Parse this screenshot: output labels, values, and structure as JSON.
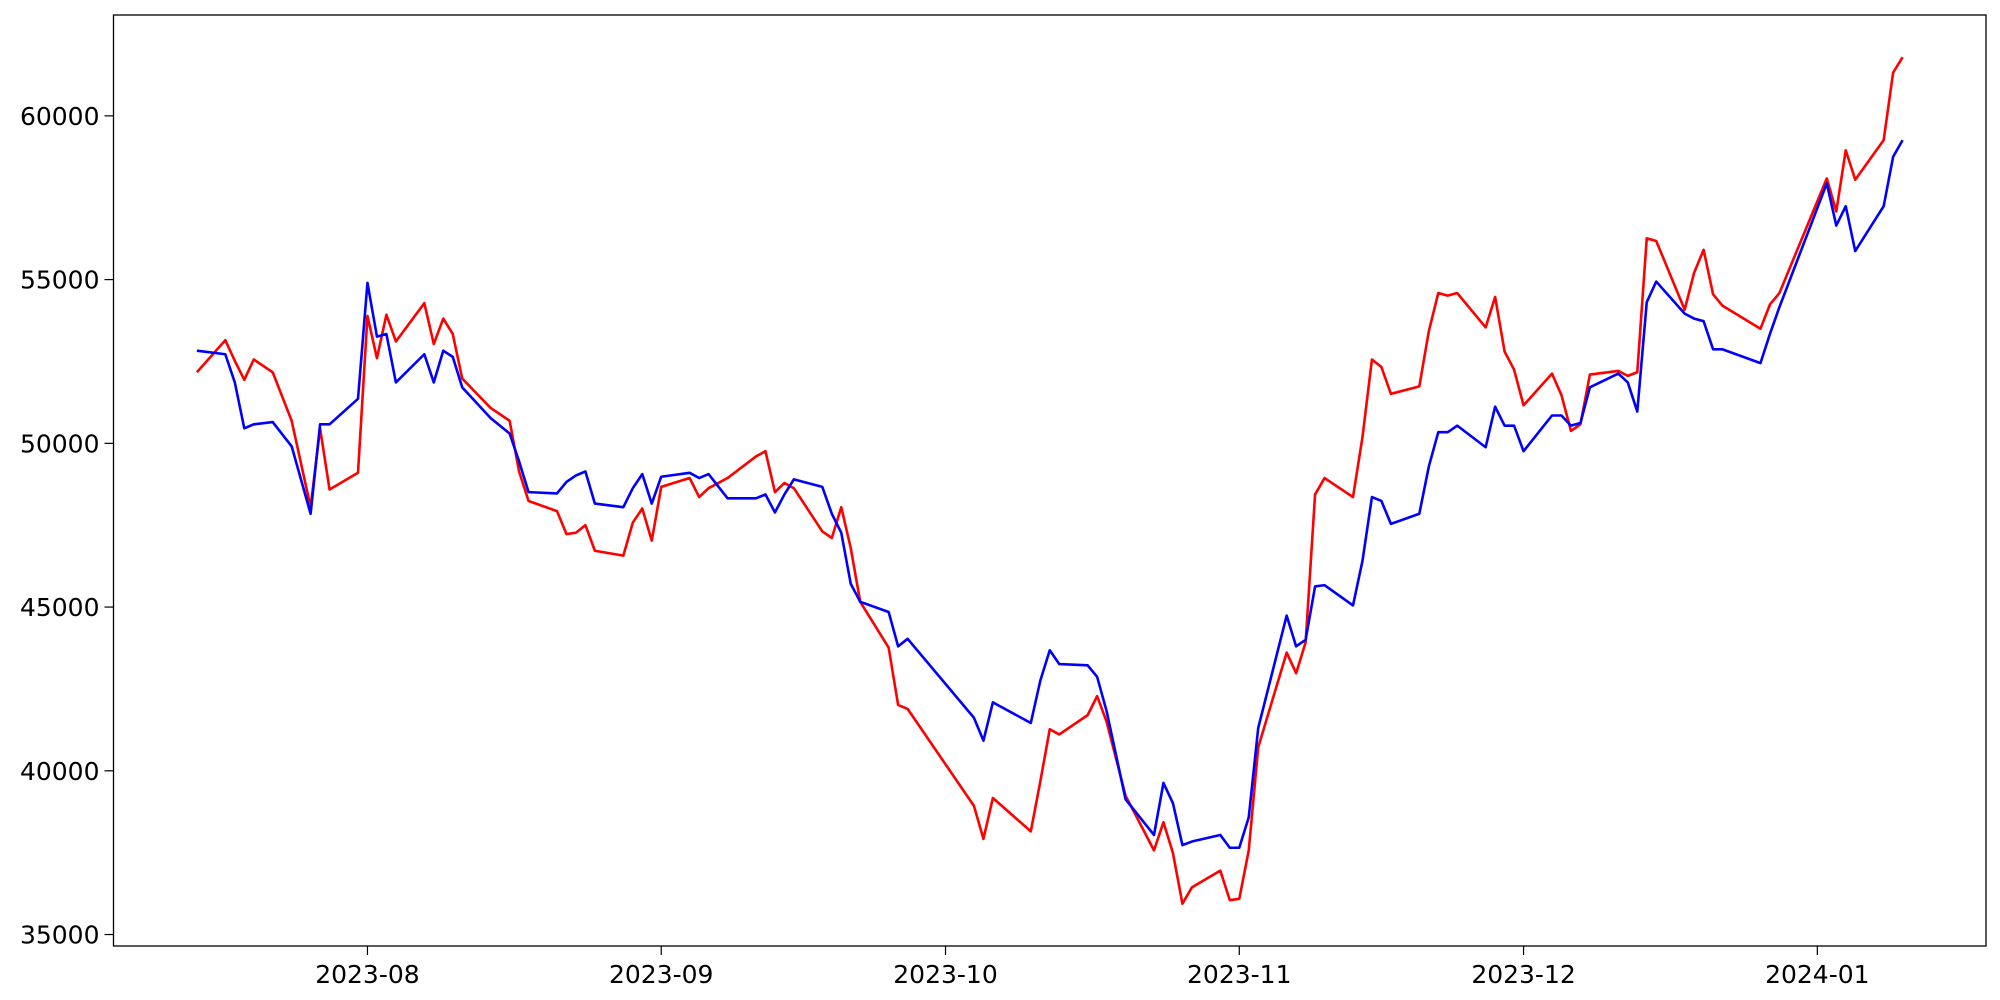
{
  "chart_data": {
    "type": "line",
    "x": [
      19552,
      19555,
      19556,
      19557,
      19558,
      19560,
      19562,
      19564,
      19565,
      19566,
      19569,
      19570,
      19571,
      19572,
      19573,
      19576,
      19577,
      19578,
      19579,
      19580,
      19583,
      19585,
      19586,
      19587,
      19590,
      19591,
      19592,
      19593,
      19594,
      19597,
      19598,
      19599,
      19600,
      19601,
      19604,
      19605,
      19606,
      19608,
      19611,
      19612,
      19613,
      19614,
      19615,
      19618,
      19619,
      19620,
      19621,
      19622,
      19625,
      19626,
      19627,
      19634,
      19635,
      19636,
      19640,
      19641,
      19642,
      19643,
      19646,
      19647,
      19648,
      19650,
      19653,
      19654,
      19655,
      19656,
      19657,
      19660,
      19661,
      19662,
      19663,
      19664,
      19667,
      19668,
      19669,
      19670,
      19671,
      19674,
      19675,
      19676,
      19677,
      19678,
      19681,
      19682,
      19683,
      19684,
      19685,
      19688,
      19689,
      19690,
      19691,
      19692,
      19695,
      19696,
      19697,
      19698,
      19699,
      19702,
      19703,
      19704,
      19705,
      19706,
      19709,
      19710,
      19711,
      19712,
      19713,
      19717,
      19718,
      19719,
      19724,
      19725,
      19726,
      19727,
      19730,
      19731,
      19732
    ],
    "series": [
      {
        "color": "red",
        "values": [
          52170,
          53150,
          52520,
          51940,
          52560,
          52170,
          50690,
          48050,
          50460,
          48590,
          49100,
          53890,
          52600,
          53930,
          53110,
          54280,
          53030,
          53810,
          53340,
          51980,
          51080,
          50690,
          49140,
          48240,
          47930,
          47230,
          47270,
          47500,
          46720,
          46570,
          47580,
          48010,
          47030,
          48670,
          48940,
          48360,
          48630,
          48940,
          49600,
          49760,
          48510,
          48790,
          48630,
          47310,
          47110,
          48050,
          46800,
          45160,
          43760,
          42010,
          41890,
          38930,
          37920,
          39170,
          38150,
          39670,
          41270,
          41110,
          41700,
          42280,
          41500,
          39240,
          37570,
          38430,
          37490,
          35940,
          36440,
          36950,
          36050,
          36090,
          37570,
          40720,
          43610,
          42980,
          43920,
          48440,
          48940,
          48360,
          50190,
          52560,
          52330,
          51510,
          51740,
          53420,
          54590,
          54510,
          54590,
          53540,
          54470,
          52800,
          52250,
          51160,
          52130,
          51470,
          50380,
          50580,
          52100,
          52210,
          52060,
          52170,
          56260,
          56180,
          54080,
          55210,
          55910,
          54550,
          54200,
          53500,
          54240,
          54590,
          58090,
          57080,
          58950,
          58050,
          59260,
          61320,
          61790
        ]
      },
      {
        "color": "blue",
        "values": [
          52830,
          52720,
          51860,
          50460,
          50580,
          50650,
          49910,
          47850,
          50580,
          50580,
          51360,
          54900,
          53260,
          53340,
          51860,
          52720,
          51860,
          52830,
          52640,
          51710,
          50770,
          50300,
          49450,
          48510,
          48470,
          48820,
          49020,
          49140,
          48160,
          48050,
          48630,
          49060,
          48160,
          48980,
          49100,
          48940,
          49060,
          48320,
          48320,
          48440,
          47890,
          48440,
          48900,
          48670,
          47850,
          47270,
          45710,
          45160,
          44850,
          43800,
          44030,
          41620,
          40920,
          42090,
          41460,
          42750,
          43680,
          43260,
          43220,
          42870,
          41820,
          39130,
          38040,
          39630,
          39010,
          37730,
          37840,
          38040,
          37650,
          37650,
          38580,
          41310,
          44740,
          43800,
          44000,
          45630,
          45670,
          45050,
          46410,
          48360,
          48240,
          47540,
          47850,
          49290,
          50340,
          50340,
          50540,
          49880,
          51120,
          50540,
          50540,
          49760,
          50850,
          50850,
          50540,
          50620,
          51710,
          52130,
          51860,
          50970,
          54310,
          54940,
          53960,
          53810,
          53730,
          52870,
          52870,
          52450,
          53340,
          54160,
          57940,
          56650,
          57240,
          55870,
          57240,
          58750,
          59260
        ]
      }
    ],
    "xlim": [
      19543.2,
      19740.8
    ],
    "xticks": [
      {
        "value": 19570,
        "label": "2023-08"
      },
      {
        "value": 19601,
        "label": "2023-09"
      },
      {
        "value": 19631,
        "label": "2023-10"
      },
      {
        "value": 19662,
        "label": "2023-11"
      },
      {
        "value": 19692,
        "label": "2023-12"
      },
      {
        "value": 19723,
        "label": "2024-01"
      }
    ],
    "ylim": [
      34650,
      63080
    ],
    "yticks": [
      35000,
      40000,
      45000,
      50000,
      55000,
      60000
    ]
  }
}
